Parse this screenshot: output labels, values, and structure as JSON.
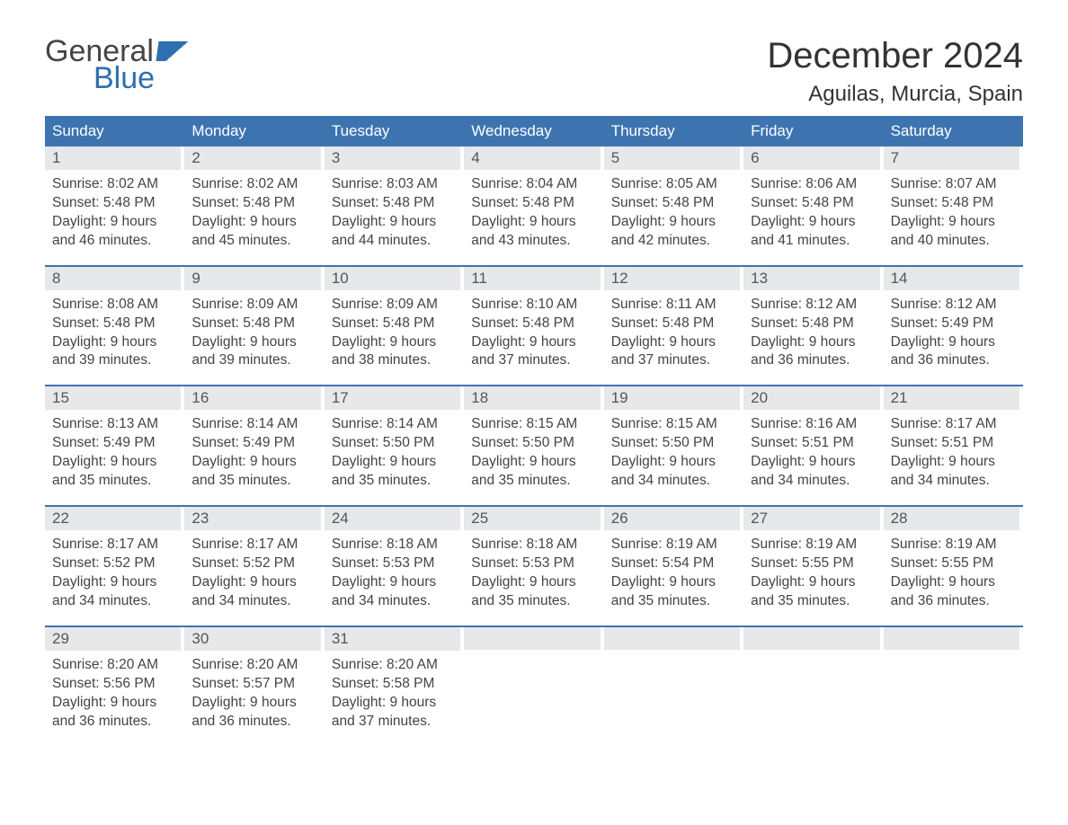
{
  "brand": {
    "word1": "General",
    "word2": "Blue"
  },
  "title": "December 2024",
  "location": "Aguilas, Murcia, Spain",
  "colors": {
    "header_bg": "#3d74b0",
    "header_text": "#ffffff",
    "daynum_bg": "#e6e8ea",
    "body_text": "#444444",
    "brand_blue": "#2f6fb0"
  },
  "day_headers": [
    "Sunday",
    "Monday",
    "Tuesday",
    "Wednesday",
    "Thursday",
    "Friday",
    "Saturday"
  ],
  "weeks": [
    [
      {
        "n": "1",
        "sunrise": "Sunrise: 8:02 AM",
        "sunset": "Sunset: 5:48 PM",
        "d1": "Daylight: 9 hours",
        "d2": "and 46 minutes."
      },
      {
        "n": "2",
        "sunrise": "Sunrise: 8:02 AM",
        "sunset": "Sunset: 5:48 PM",
        "d1": "Daylight: 9 hours",
        "d2": "and 45 minutes."
      },
      {
        "n": "3",
        "sunrise": "Sunrise: 8:03 AM",
        "sunset": "Sunset: 5:48 PM",
        "d1": "Daylight: 9 hours",
        "d2": "and 44 minutes."
      },
      {
        "n": "4",
        "sunrise": "Sunrise: 8:04 AM",
        "sunset": "Sunset: 5:48 PM",
        "d1": "Daylight: 9 hours",
        "d2": "and 43 minutes."
      },
      {
        "n": "5",
        "sunrise": "Sunrise: 8:05 AM",
        "sunset": "Sunset: 5:48 PM",
        "d1": "Daylight: 9 hours",
        "d2": "and 42 minutes."
      },
      {
        "n": "6",
        "sunrise": "Sunrise: 8:06 AM",
        "sunset": "Sunset: 5:48 PM",
        "d1": "Daylight: 9 hours",
        "d2": "and 41 minutes."
      },
      {
        "n": "7",
        "sunrise": "Sunrise: 8:07 AM",
        "sunset": "Sunset: 5:48 PM",
        "d1": "Daylight: 9 hours",
        "d2": "and 40 minutes."
      }
    ],
    [
      {
        "n": "8",
        "sunrise": "Sunrise: 8:08 AM",
        "sunset": "Sunset: 5:48 PM",
        "d1": "Daylight: 9 hours",
        "d2": "and 39 minutes."
      },
      {
        "n": "9",
        "sunrise": "Sunrise: 8:09 AM",
        "sunset": "Sunset: 5:48 PM",
        "d1": "Daylight: 9 hours",
        "d2": "and 39 minutes."
      },
      {
        "n": "10",
        "sunrise": "Sunrise: 8:09 AM",
        "sunset": "Sunset: 5:48 PM",
        "d1": "Daylight: 9 hours",
        "d2": "and 38 minutes."
      },
      {
        "n": "11",
        "sunrise": "Sunrise: 8:10 AM",
        "sunset": "Sunset: 5:48 PM",
        "d1": "Daylight: 9 hours",
        "d2": "and 37 minutes."
      },
      {
        "n": "12",
        "sunrise": "Sunrise: 8:11 AM",
        "sunset": "Sunset: 5:48 PM",
        "d1": "Daylight: 9 hours",
        "d2": "and 37 minutes."
      },
      {
        "n": "13",
        "sunrise": "Sunrise: 8:12 AM",
        "sunset": "Sunset: 5:48 PM",
        "d1": "Daylight: 9 hours",
        "d2": "and 36 minutes."
      },
      {
        "n": "14",
        "sunrise": "Sunrise: 8:12 AM",
        "sunset": "Sunset: 5:49 PM",
        "d1": "Daylight: 9 hours",
        "d2": "and 36 minutes."
      }
    ],
    [
      {
        "n": "15",
        "sunrise": "Sunrise: 8:13 AM",
        "sunset": "Sunset: 5:49 PM",
        "d1": "Daylight: 9 hours",
        "d2": "and 35 minutes."
      },
      {
        "n": "16",
        "sunrise": "Sunrise: 8:14 AM",
        "sunset": "Sunset: 5:49 PM",
        "d1": "Daylight: 9 hours",
        "d2": "and 35 minutes."
      },
      {
        "n": "17",
        "sunrise": "Sunrise: 8:14 AM",
        "sunset": "Sunset: 5:50 PM",
        "d1": "Daylight: 9 hours",
        "d2": "and 35 minutes."
      },
      {
        "n": "18",
        "sunrise": "Sunrise: 8:15 AM",
        "sunset": "Sunset: 5:50 PM",
        "d1": "Daylight: 9 hours",
        "d2": "and 35 minutes."
      },
      {
        "n": "19",
        "sunrise": "Sunrise: 8:15 AM",
        "sunset": "Sunset: 5:50 PM",
        "d1": "Daylight: 9 hours",
        "d2": "and 34 minutes."
      },
      {
        "n": "20",
        "sunrise": "Sunrise: 8:16 AM",
        "sunset": "Sunset: 5:51 PM",
        "d1": "Daylight: 9 hours",
        "d2": "and 34 minutes."
      },
      {
        "n": "21",
        "sunrise": "Sunrise: 8:17 AM",
        "sunset": "Sunset: 5:51 PM",
        "d1": "Daylight: 9 hours",
        "d2": "and 34 minutes."
      }
    ],
    [
      {
        "n": "22",
        "sunrise": "Sunrise: 8:17 AM",
        "sunset": "Sunset: 5:52 PM",
        "d1": "Daylight: 9 hours",
        "d2": "and 34 minutes."
      },
      {
        "n": "23",
        "sunrise": "Sunrise: 8:17 AM",
        "sunset": "Sunset: 5:52 PM",
        "d1": "Daylight: 9 hours",
        "d2": "and 34 minutes."
      },
      {
        "n": "24",
        "sunrise": "Sunrise: 8:18 AM",
        "sunset": "Sunset: 5:53 PM",
        "d1": "Daylight: 9 hours",
        "d2": "and 34 minutes."
      },
      {
        "n": "25",
        "sunrise": "Sunrise: 8:18 AM",
        "sunset": "Sunset: 5:53 PM",
        "d1": "Daylight: 9 hours",
        "d2": "and 35 minutes."
      },
      {
        "n": "26",
        "sunrise": "Sunrise: 8:19 AM",
        "sunset": "Sunset: 5:54 PM",
        "d1": "Daylight: 9 hours",
        "d2": "and 35 minutes."
      },
      {
        "n": "27",
        "sunrise": "Sunrise: 8:19 AM",
        "sunset": "Sunset: 5:55 PM",
        "d1": "Daylight: 9 hours",
        "d2": "and 35 minutes."
      },
      {
        "n": "28",
        "sunrise": "Sunrise: 8:19 AM",
        "sunset": "Sunset: 5:55 PM",
        "d1": "Daylight: 9 hours",
        "d2": "and 36 minutes."
      }
    ],
    [
      {
        "n": "29",
        "sunrise": "Sunrise: 8:20 AM",
        "sunset": "Sunset: 5:56 PM",
        "d1": "Daylight: 9 hours",
        "d2": "and 36 minutes."
      },
      {
        "n": "30",
        "sunrise": "Sunrise: 8:20 AM",
        "sunset": "Sunset: 5:57 PM",
        "d1": "Daylight: 9 hours",
        "d2": "and 36 minutes."
      },
      {
        "n": "31",
        "sunrise": "Sunrise: 8:20 AM",
        "sunset": "Sunset: 5:58 PM",
        "d1": "Daylight: 9 hours",
        "d2": "and 37 minutes."
      },
      {
        "empty": true
      },
      {
        "empty": true
      },
      {
        "empty": true
      },
      {
        "empty": true
      }
    ]
  ]
}
